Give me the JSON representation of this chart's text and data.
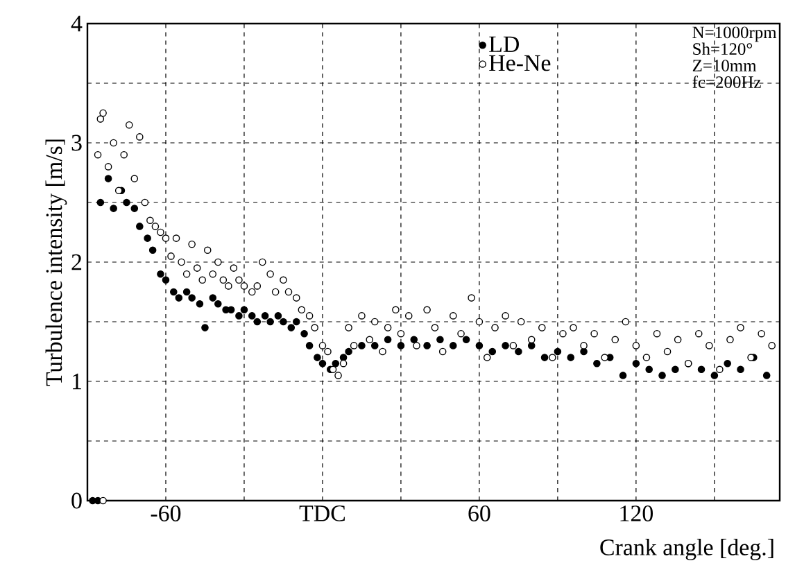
{
  "chart_data": {
    "type": "scatter",
    "xlabel": "Crank angle [deg.]",
    "ylabel": "Turbulence intensity [m/s]",
    "annotations": [
      "N=1000rpm",
      "Sh=120°",
      "Z=10mm",
      "fc=200Hz"
    ],
    "xlim": [
      -90,
      175
    ],
    "ylim": [
      0,
      4
    ],
    "xticks": [
      {
        "value": -60,
        "label": "-60"
      },
      {
        "value": -30,
        "label": null
      },
      {
        "value": 0,
        "label": "TDC"
      },
      {
        "value": 30,
        "label": null
      },
      {
        "value": 60,
        "label": "60"
      },
      {
        "value": 90,
        "label": null
      },
      {
        "value": 120,
        "label": "120"
      },
      {
        "value": 150,
        "label": null
      }
    ],
    "yticks": [
      0,
      {
        "value": 0.5,
        "label": null
      },
      1,
      {
        "value": 1.5,
        "label": null
      },
      2,
      {
        "value": 2.5,
        "label": null
      },
      3,
      {
        "value": 3.5,
        "label": null
      },
      4
    ],
    "grid": true,
    "legend": "top",
    "marker": "circle",
    "series": [
      {
        "name": "LD",
        "color": "#000000",
        "x": [
          -88,
          -86,
          -85,
          -82,
          -80,
          -77,
          -75,
          -72,
          -70,
          -67,
          -65,
          -62,
          -60,
          -57,
          -55,
          -52,
          -50,
          -47,
          -45,
          -42,
          -40,
          -37,
          -35,
          -32,
          -30,
          -27,
          -25,
          -22,
          -20,
          -17,
          -15,
          -12,
          -10,
          -7,
          -5,
          -2,
          0,
          3,
          5,
          8,
          10,
          15,
          20,
          25,
          30,
          35,
          40,
          45,
          50,
          55,
          60,
          65,
          70,
          75,
          80,
          85,
          90,
          95,
          100,
          105,
          110,
          115,
          120,
          125,
          130,
          135,
          140,
          145,
          150,
          155,
          160,
          165,
          170
        ],
        "values": [
          0,
          0,
          2.5,
          2.7,
          2.45,
          2.6,
          2.5,
          2.45,
          2.3,
          2.2,
          2.1,
          1.9,
          1.85,
          1.75,
          1.7,
          1.75,
          1.7,
          1.65,
          1.45,
          1.7,
          1.65,
          1.6,
          1.6,
          1.55,
          1.6,
          1.55,
          1.5,
          1.55,
          1.5,
          1.55,
          1.5,
          1.45,
          1.5,
          1.4,
          1.3,
          1.2,
          1.15,
          1.1,
          1.15,
          1.2,
          1.25,
          1.3,
          1.3,
          1.35,
          1.3,
          1.35,
          1.3,
          1.35,
          1.3,
          1.35,
          1.3,
          1.25,
          1.3,
          1.25,
          1.3,
          1.2,
          1.25,
          1.2,
          1.25,
          1.15,
          1.2,
          1.05,
          1.15,
          1.1,
          1.05,
          1.1,
          1.15,
          1.1,
          1.05,
          1.15,
          1.1,
          1.2,
          1.05
        ]
      },
      {
        "name": "He-Ne",
        "color": "#ffffff",
        "x": [
          -84,
          -86,
          -85,
          -84,
          -82,
          -80,
          -78,
          -76,
          -74,
          -72,
          -70,
          -68,
          -66,
          -64,
          -62,
          -60,
          -58,
          -56,
          -54,
          -52,
          -50,
          -48,
          -46,
          -44,
          -42,
          -40,
          -38,
          -36,
          -34,
          -32,
          -30,
          -27,
          -25,
          -23,
          -20,
          -18,
          -15,
          -13,
          -10,
          -8,
          -5,
          -3,
          0,
          2,
          4,
          6,
          8,
          10,
          12,
          15,
          18,
          20,
          23,
          25,
          28,
          30,
          33,
          36,
          40,
          43,
          46,
          50,
          53,
          57,
          60,
          63,
          66,
          70,
          73,
          76,
          80,
          84,
          88,
          92,
          96,
          100,
          104,
          108,
          112,
          116,
          120,
          124,
          128,
          132,
          136,
          140,
          144,
          148,
          152,
          156,
          160,
          164,
          168,
          172
        ],
        "values": [
          0,
          2.9,
          3.2,
          3.25,
          2.8,
          3.0,
          2.6,
          2.9,
          3.15,
          2.7,
          3.05,
          2.5,
          2.35,
          2.3,
          2.25,
          2.2,
          2.05,
          2.2,
          2.0,
          1.9,
          2.15,
          1.95,
          1.85,
          2.1,
          1.9,
          2.0,
          1.85,
          1.8,
          1.95,
          1.85,
          1.8,
          1.75,
          1.8,
          2.0,
          1.9,
          1.75,
          1.85,
          1.75,
          1.7,
          1.6,
          1.55,
          1.45,
          1.3,
          1.25,
          1.1,
          1.05,
          1.15,
          1.45,
          1.3,
          1.55,
          1.35,
          1.5,
          1.25,
          1.45,
          1.6,
          1.4,
          1.55,
          1.3,
          1.6,
          1.45,
          1.25,
          1.55,
          1.4,
          1.7,
          1.5,
          1.2,
          1.45,
          1.55,
          1.3,
          1.5,
          1.35,
          1.45,
          1.2,
          1.4,
          1.45,
          1.3,
          1.4,
          1.2,
          1.35,
          1.5,
          1.3,
          1.2,
          1.4,
          1.25,
          1.35,
          1.15,
          1.4,
          1.3,
          1.1,
          1.35,
          1.45,
          1.2,
          1.4,
          1.3
        ]
      }
    ]
  }
}
